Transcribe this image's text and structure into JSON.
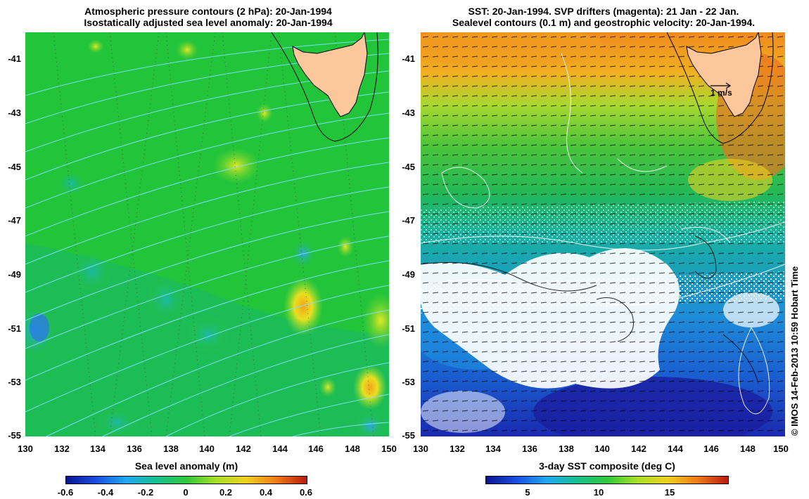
{
  "left_map": {
    "title_line1": "Atmospheric pressure contours (2 hPa): 20-Jan-1994",
    "title_line2": "Isostatically adjusted sea level anomaly: 20-Jan-1994",
    "y_ticks": [
      "-41",
      "-43",
      "-45",
      "-47",
      "-49",
      "-51",
      "-53",
      "-55"
    ],
    "x_ticks": [
      "130",
      "132",
      "134",
      "136",
      "138",
      "140",
      "142",
      "144",
      "146",
      "148",
      "150"
    ],
    "colorbar": {
      "title": "Sea level anomaly (m)",
      "ticks": [
        "-0.6",
        "-0.4",
        "-0.2",
        "0",
        "0.2",
        "0.4",
        "0.6"
      ]
    },
    "colors": {
      "base": "#22c43a",
      "land": "#fcc79a",
      "contour": "#7fe0ff",
      "dots": "#663344"
    }
  },
  "right_map": {
    "title_line1": "SST: 20-Jan-1994. SVP drifters (magenta): 21 Jan - 22 Jan.",
    "title_line2": "Sealevel contours (0.1 m) and geostrophic velocity: 20-Jan-1994.",
    "y_ticks": [
      "-41",
      "-43",
      "-45",
      "-47",
      "-49",
      "-51",
      "-53",
      "-55"
    ],
    "x_ticks": [
      "130",
      "132",
      "134",
      "136",
      "138",
      "140",
      "142",
      "144",
      "146",
      "148",
      "150"
    ],
    "scale_label": "1 m/s",
    "colorbar": {
      "title": "3-day SST composite (deg C)",
      "ticks": [
        "5",
        "10",
        "15"
      ]
    },
    "colors": {
      "land": "#fcc79a",
      "warm": "#f08a1e",
      "cloud": "#ffffff",
      "cold": "#1a3cc8"
    }
  },
  "credit": "© IMOS 14-Feb-2013 10:59 Hobart Time"
}
